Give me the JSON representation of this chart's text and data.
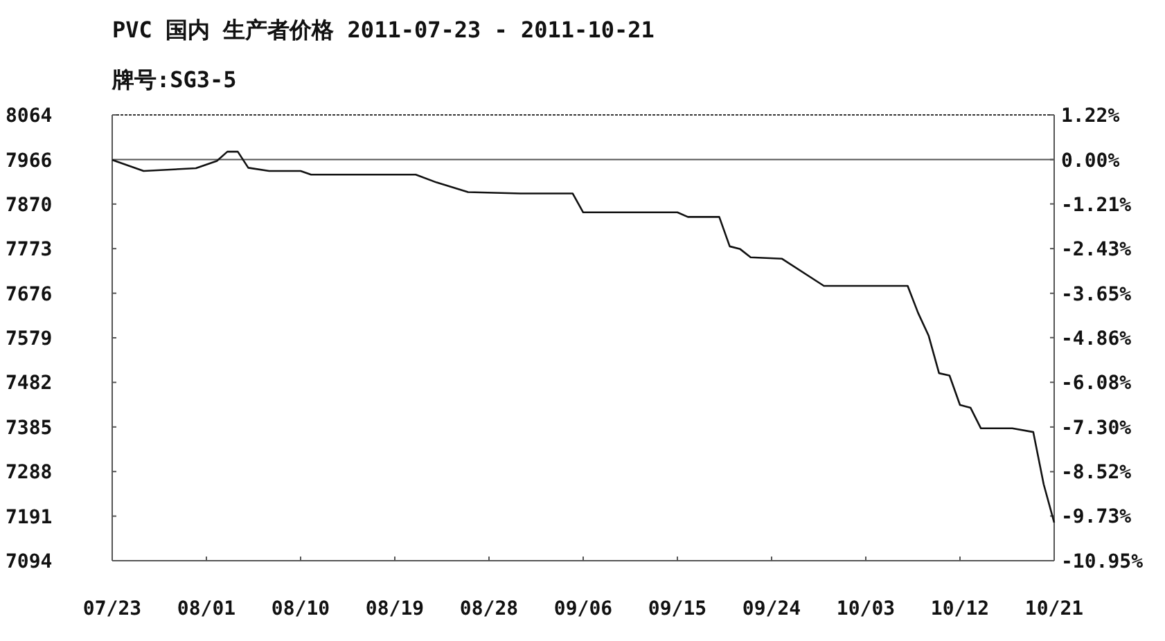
{
  "chart_data": {
    "type": "line",
    "title": "PVC 国内 生产者价格 2011-07-23 - 2011-10-21",
    "subtitle": "牌号:SG3-5",
    "x": [
      "2011-07-23",
      "2011-07-26",
      "2011-07-31",
      "2011-08-02",
      "2011-08-03",
      "2011-08-04",
      "2011-08-05",
      "2011-08-07",
      "2011-08-10",
      "2011-08-11",
      "2011-08-21",
      "2011-08-23",
      "2011-08-26",
      "2011-08-31",
      "2011-09-05",
      "2011-09-06",
      "2011-09-15",
      "2011-09-16",
      "2011-09-19",
      "2011-09-20",
      "2011-09-21",
      "2011-09-22",
      "2011-09-25",
      "2011-09-29",
      "2011-10-07",
      "2011-10-08",
      "2011-10-09",
      "2011-10-10",
      "2011-10-11",
      "2011-10-12",
      "2011-10-13",
      "2011-10-14",
      "2011-10-17",
      "2011-10-19",
      "2011-10-20",
      "2011-10-21"
    ],
    "values": [
      7966,
      7942,
      7948,
      7964,
      7984,
      7984,
      7949,
      7942,
      7942,
      7934,
      7934,
      7917,
      7896,
      7893,
      7893,
      7852,
      7852,
      7842,
      7842,
      7778,
      7772,
      7754,
      7751,
      7692,
      7692,
      7633,
      7584,
      7502,
      7497,
      7433,
      7427,
      7382,
      7382,
      7374,
      7260,
      7177
    ],
    "color": "#111111",
    "xlim": [
      "2011-07-23",
      "2011-10-21"
    ],
    "xticks": [
      {
        "value": "2011-07-23",
        "label": "07/23"
      },
      {
        "value": "2011-08-01",
        "label": "08/01"
      },
      {
        "value": "2011-08-10",
        "label": "08/10"
      },
      {
        "value": "2011-08-19",
        "label": "08/19"
      },
      {
        "value": "2011-08-28",
        "label": "08/28"
      },
      {
        "value": "2011-09-06",
        "label": "09/06"
      },
      {
        "value": "2011-09-15",
        "label": "09/15"
      },
      {
        "value": "2011-09-24",
        "label": "09/24"
      },
      {
        "value": "2011-10-03",
        "label": "10/03"
      },
      {
        "value": "2011-10-12",
        "label": "10/12"
      },
      {
        "value": "2011-10-21",
        "label": "10/21"
      }
    ],
    "ylim": [
      7094,
      8064
    ],
    "yticks": [
      8064,
      7966,
      7870,
      7773,
      7676,
      7579,
      7482,
      7385,
      7288,
      7191,
      7094
    ],
    "y2lim": [
      -10.95,
      1.22
    ],
    "y2ticks": [
      {
        "value": 1.22,
        "label": "1.22%"
      },
      {
        "value": 0,
        "label": "0.00%"
      },
      {
        "value": -1.21,
        "label": "-1.21%"
      },
      {
        "value": -2.43,
        "label": "-2.43%"
      },
      {
        "value": -3.65,
        "label": "-3.65%"
      },
      {
        "value": -4.86,
        "label": "-4.86%"
      },
      {
        "value": -6.08,
        "label": "-6.08%"
      },
      {
        "value": -7.3,
        "label": "-7.30%"
      },
      {
        "value": -8.52,
        "label": "-8.52%"
      },
      {
        "value": -9.73,
        "label": "-9.73%"
      },
      {
        "value": -10.95,
        "label": "-10.95%"
      }
    ],
    "ref_lines": [
      {
        "axis": "y2",
        "value": 0,
        "color": "#555555"
      }
    ]
  }
}
